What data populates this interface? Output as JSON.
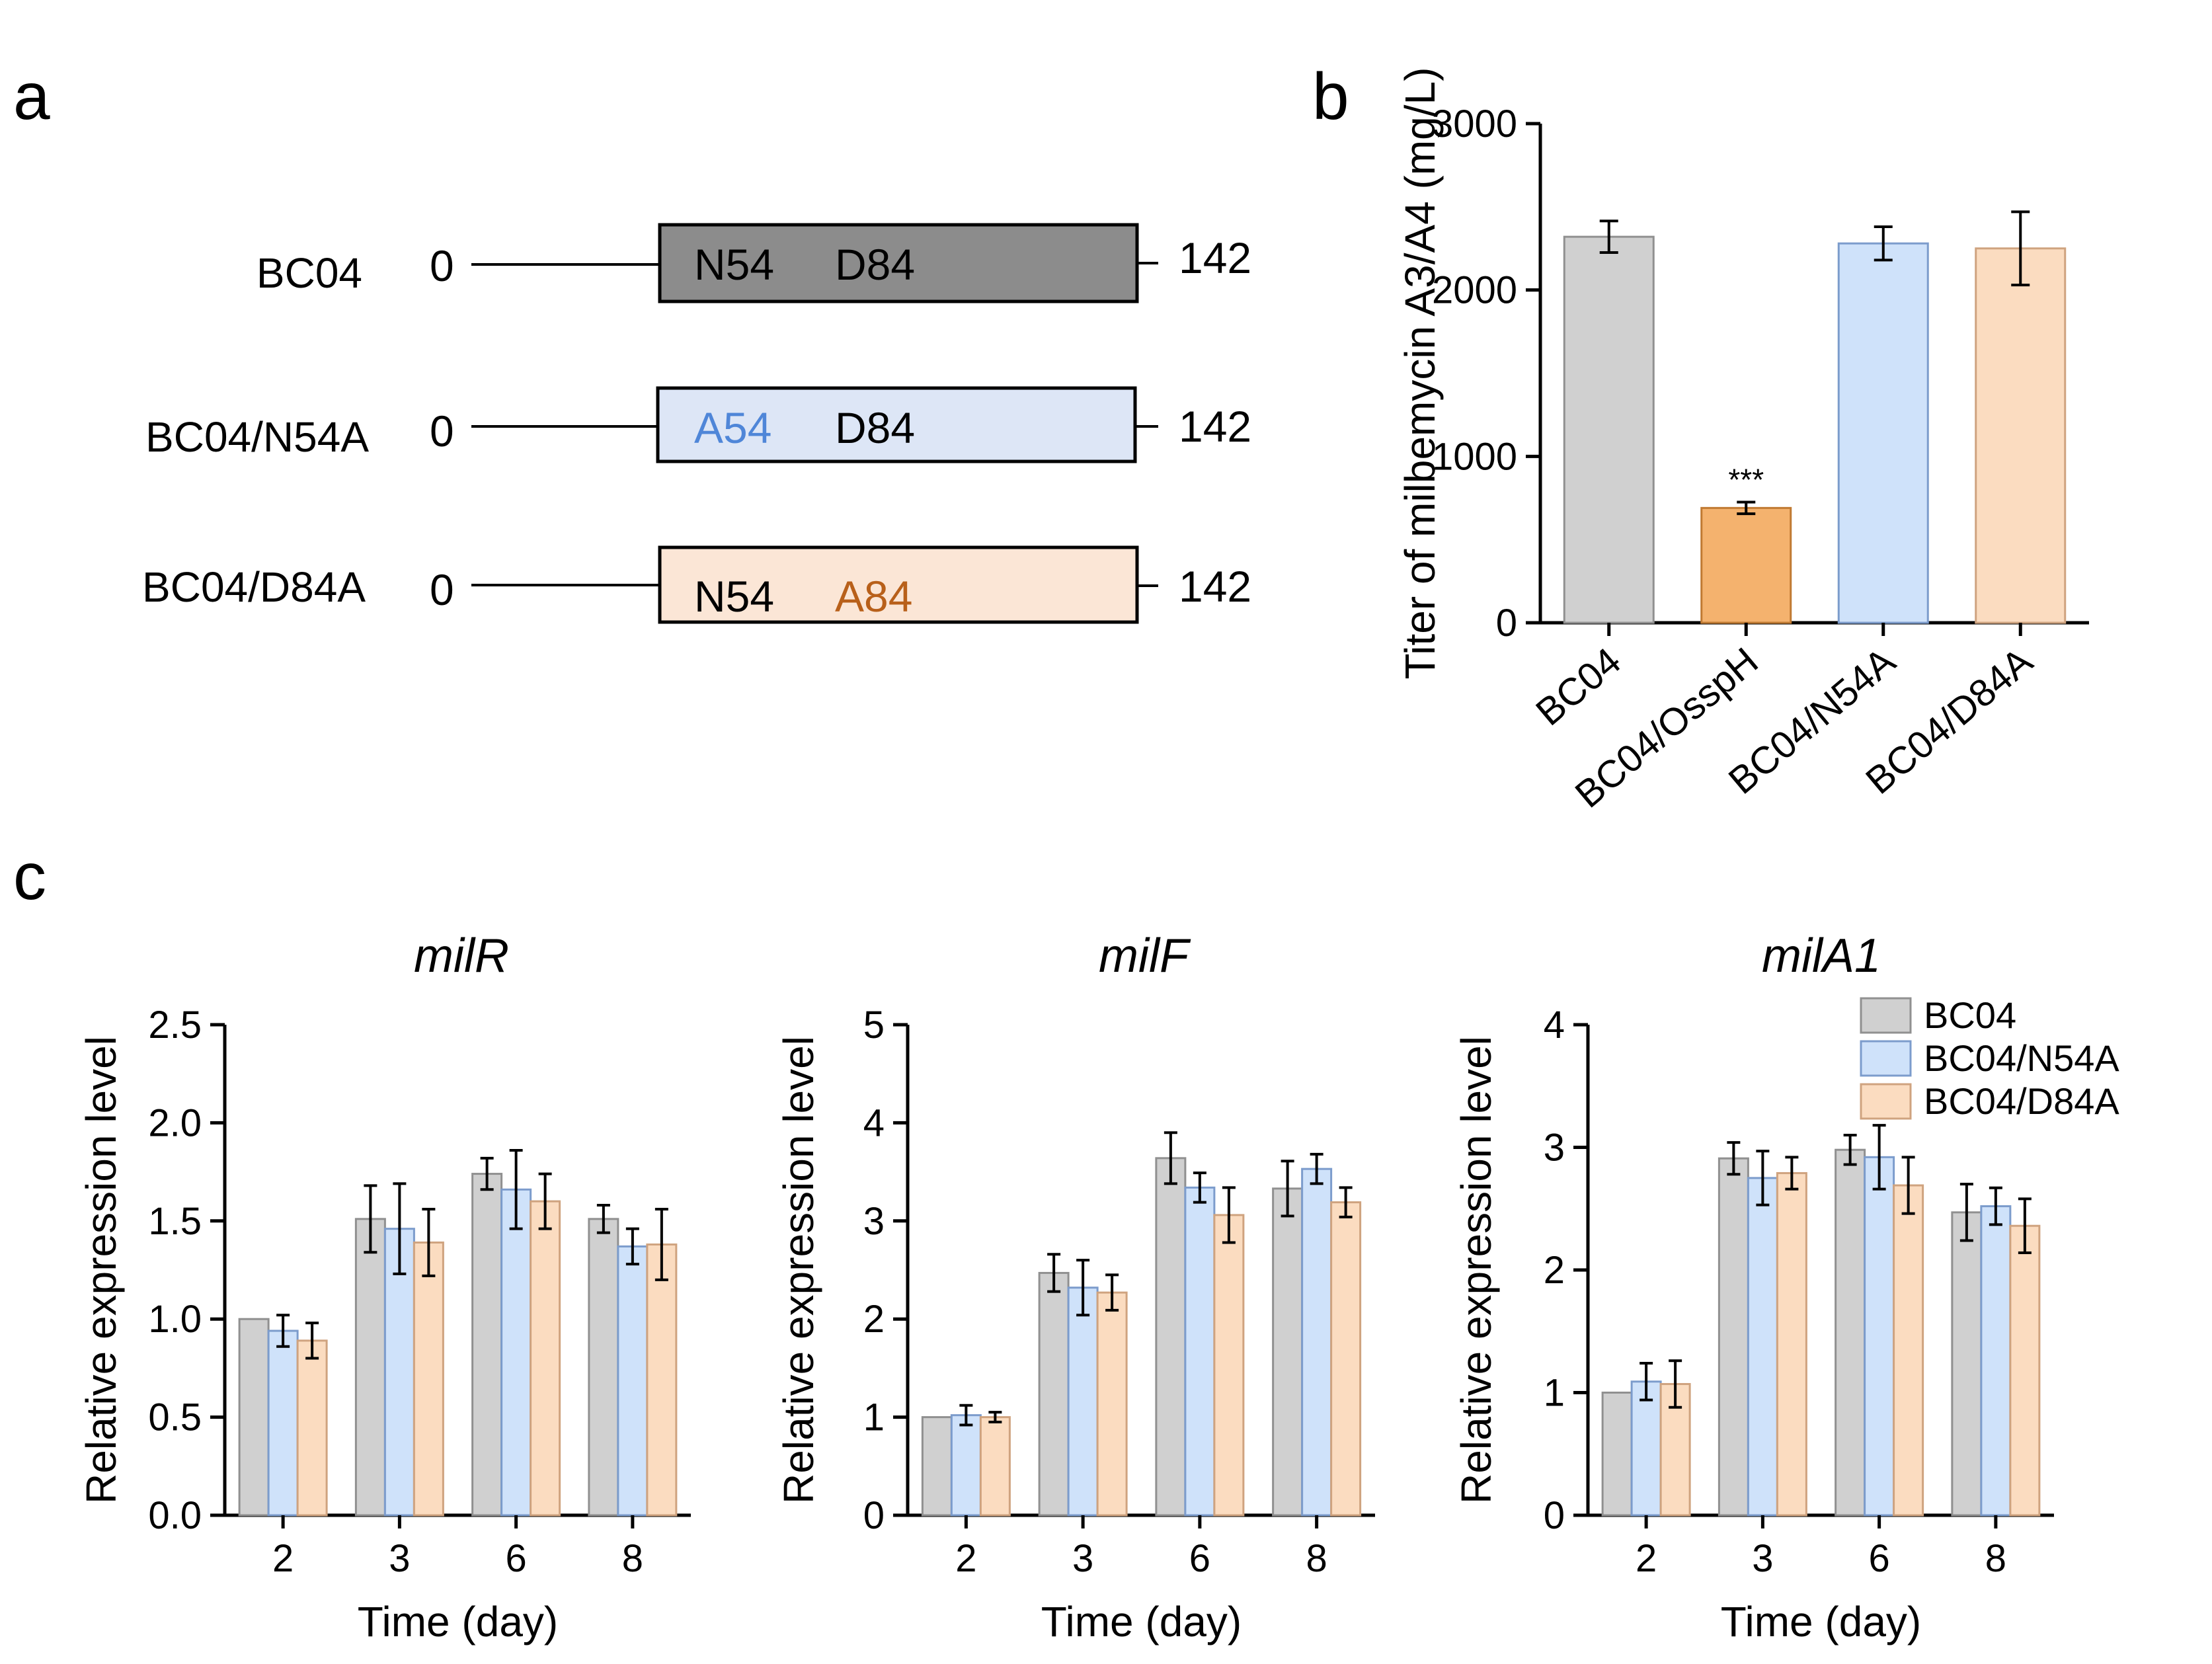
{
  "panel_labels": {
    "a": "a",
    "b": "b",
    "c": "c"
  },
  "colors": {
    "gray": "#d0d0d0",
    "gray_stroke": "#909090",
    "blue": "#cfe2fa",
    "blue_stroke": "#7c9ccc",
    "peach": "#fbdcc0",
    "peach_stroke": "#cfa37f",
    "orange": "#f4b26e",
    "orange_stroke": "#c07a32",
    "box_bc04": "#8c8c8c",
    "box_n54a": "#dde6f6",
    "box_d84a": "#fbe6d6",
    "text_blue": "#4f86d8",
    "text_orange": "#b8601a"
  },
  "panel_a": {
    "rows": [
      {
        "strain": "BC04",
        "start": "0",
        "end": "142",
        "res1": "N54",
        "res2": "D84"
      },
      {
        "strain": "BC04/N54A",
        "start": "0",
        "end": "142",
        "res1": "A54",
        "res2": "D84"
      },
      {
        "strain": "BC04/D84A",
        "start": "0",
        "end": "142",
        "res1": "N54",
        "res2": "A84"
      }
    ]
  },
  "chart_data": [
    {
      "id": "b",
      "type": "bar",
      "title": "",
      "ylabel": "Titer of milbemycin A3/A4 (mg/L)",
      "xlabel": "",
      "ylim": [
        0,
        3000
      ],
      "yticks": [
        0,
        1000,
        2000,
        3000
      ],
      "categories": [
        "BC04",
        "BC04/OsspH",
        "BC04/N54A",
        "BC04/D84A"
      ],
      "values": [
        2320,
        690,
        2280,
        2250
      ],
      "errors": [
        95,
        35,
        100,
        220
      ],
      "colors": [
        "gray",
        "orange",
        "blue",
        "peach"
      ],
      "annotations": [
        {
          "category": "BC04/OsspH",
          "text": "***"
        }
      ]
    },
    {
      "id": "c1",
      "type": "bar",
      "title": "milR",
      "xlabel": "Time (day)",
      "ylabel": "Relative expression level",
      "ylim": [
        0,
        2.5
      ],
      "yticks": [
        "0.0",
        "0.5",
        "1.0",
        "1.5",
        "2.0",
        "2.5"
      ],
      "categories": [
        "2",
        "3",
        "6",
        "8"
      ],
      "series": [
        {
          "name": "BC04",
          "values": [
            1.0,
            1.51,
            1.74,
            1.51
          ],
          "errors": [
            0.0,
            0.17,
            0.08,
            0.07
          ]
        },
        {
          "name": "BC04/N54A",
          "values": [
            0.94,
            1.46,
            1.66,
            1.37
          ],
          "errors": [
            0.08,
            0.23,
            0.2,
            0.09
          ]
        },
        {
          "name": "BC04/D84A",
          "values": [
            0.89,
            1.39,
            1.6,
            1.38
          ],
          "errors": [
            0.09,
            0.17,
            0.14,
            0.18
          ]
        }
      ]
    },
    {
      "id": "c2",
      "type": "bar",
      "title": "milF",
      "xlabel": "Time (day)",
      "ylabel": "Relative expression level",
      "ylim": [
        0,
        5
      ],
      "yticks": [
        "0",
        "1",
        "2",
        "3",
        "4",
        "5"
      ],
      "categories": [
        "2",
        "3",
        "6",
        "8"
      ],
      "series": [
        {
          "name": "BC04",
          "values": [
            1.0,
            2.47,
            3.64,
            3.33
          ],
          "errors": [
            0.0,
            0.19,
            0.26,
            0.28
          ]
        },
        {
          "name": "BC04/N54A",
          "values": [
            1.02,
            2.32,
            3.34,
            3.53
          ],
          "errors": [
            0.1,
            0.28,
            0.15,
            0.15
          ]
        },
        {
          "name": "BC04/D84A",
          "values": [
            1.0,
            2.27,
            3.06,
            3.19
          ],
          "errors": [
            0.05,
            0.18,
            0.28,
            0.15
          ]
        }
      ]
    },
    {
      "id": "c3",
      "type": "bar",
      "title": "milA1",
      "xlabel": "Time (day)",
      "ylabel": "Relative expression level",
      "ylim": [
        0,
        4
      ],
      "yticks": [
        "0",
        "1",
        "2",
        "3",
        "4"
      ],
      "categories": [
        "2",
        "3",
        "6",
        "8"
      ],
      "legend": {
        "position": "top-right",
        "entries": [
          "BC04",
          "BC04/N54A",
          "BC04/D84A"
        ]
      },
      "series": [
        {
          "name": "BC04",
          "values": [
            1.0,
            2.91,
            2.98,
            2.47
          ],
          "errors": [
            0.0,
            0.13,
            0.12,
            0.23
          ]
        },
        {
          "name": "BC04/N54A",
          "values": [
            1.09,
            2.75,
            2.92,
            2.52
          ],
          "errors": [
            0.15,
            0.22,
            0.26,
            0.15
          ]
        },
        {
          "name": "BC04/D84A",
          "values": [
            1.07,
            2.79,
            2.69,
            2.36
          ],
          "errors": [
            0.19,
            0.13,
            0.23,
            0.22
          ]
        }
      ]
    }
  ]
}
